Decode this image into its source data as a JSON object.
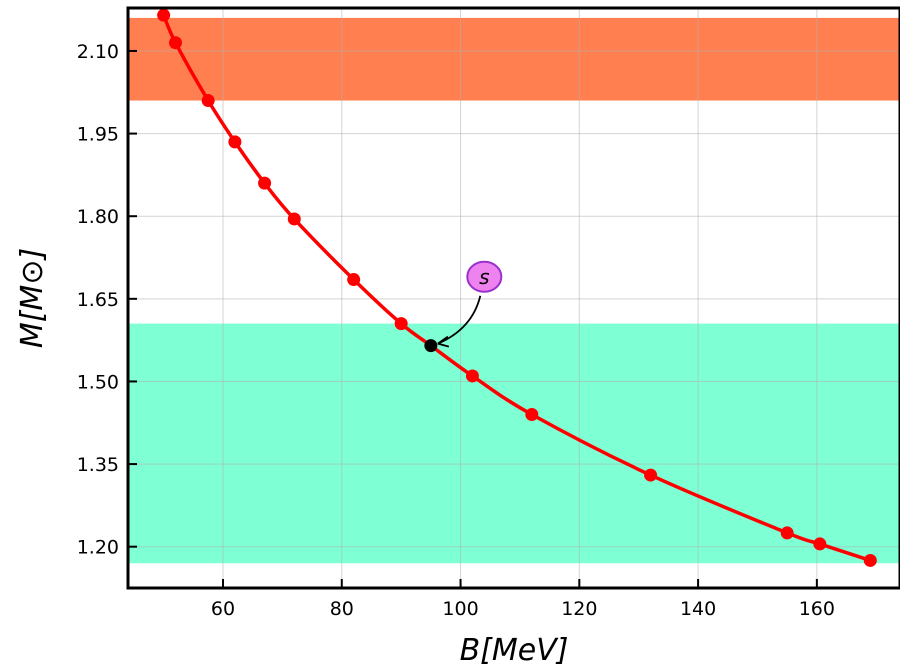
{
  "chart_data": {
    "type": "line",
    "title": "",
    "xlabel": "B[MeV]",
    "ylabel": "M[M⊙]",
    "xlim": [
      44,
      174
    ],
    "ylim": [
      1.125,
      2.178
    ],
    "xticks": [
      60,
      80,
      100,
      120,
      140,
      160
    ],
    "yticks": [
      1.2,
      1.35,
      1.5,
      1.65,
      1.8,
      1.95,
      2.1
    ],
    "ytick_labels": [
      "1.20",
      "1.35",
      "1.50",
      "1.65",
      "1.80",
      "1.95",
      "2.10"
    ],
    "grid": true,
    "bands": [
      {
        "y0": 2.01,
        "y1": 2.16,
        "color": "#ff7f50"
      },
      {
        "y0": 1.17,
        "y1": 1.605,
        "color": "#7fffd4"
      }
    ],
    "series": [
      {
        "color": "#ff0000",
        "x": [
          50,
          52,
          57.5,
          62,
          67,
          72,
          82,
          90,
          95,
          102,
          112,
          132,
          155,
          160.5,
          169
        ],
        "y": [
          2.165,
          2.115,
          2.01,
          1.935,
          1.86,
          1.795,
          1.685,
          1.605,
          1.565,
          1.51,
          1.44,
          1.33,
          1.225,
          1.205,
          1.175
        ]
      }
    ],
    "highlight": {
      "x": 95,
      "y": 1.565,
      "color": "#000000"
    },
    "annotation": {
      "text": "s",
      "x": 104,
      "y": 1.69,
      "face_color": "#ee82ee",
      "edge_color": "#9932cc"
    }
  }
}
